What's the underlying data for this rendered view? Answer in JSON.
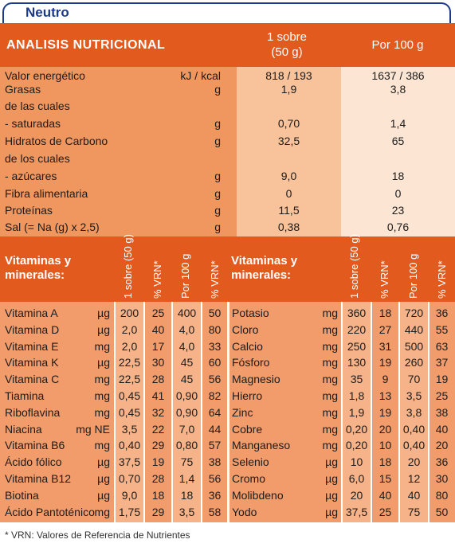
{
  "title": "Neutro",
  "header": {
    "analysis": "ANALISIS NUTRICIONAL",
    "per_sachet_line1": "1 sobre",
    "per_sachet_line2": "(50 g)",
    "per_100": "Por 100 g"
  },
  "nutrition_rows": [
    {
      "name": "Valor energético",
      "unit": "kJ / kcal",
      "sachet": "818 / 193",
      "per100": "1637 / 386"
    },
    {
      "name": "Grasas",
      "unit": "g",
      "sachet": "1,9",
      "per100": "3,8"
    },
    {
      "name": "de las cuales",
      "unit": "",
      "sachet": "",
      "per100": ""
    },
    {
      "name": " - saturadas",
      "unit": "g",
      "sachet": "0,70",
      "per100": "1,4"
    },
    {
      "name": "Hidratos de Carbono",
      "unit": "g",
      "sachet": "32,5",
      "per100": "65"
    },
    {
      "name": "de los cuales",
      "unit": "",
      "sachet": "",
      "per100": ""
    },
    {
      "name": " - azúcares",
      "unit": "g",
      "sachet": "9,0",
      "per100": "18"
    },
    {
      "name": "Fibra alimentaria",
      "unit": "g",
      "sachet": "0",
      "per100": "0"
    },
    {
      "name": "Proteínas",
      "unit": "g",
      "sachet": "11,5",
      "per100": "23"
    },
    {
      "name": "Sal (= Na (g) x 2,5)",
      "unit": "g",
      "sachet": "0,38",
      "per100": "0,76"
    }
  ],
  "vm_header": {
    "title_line1": "Vitaminas y",
    "title_line2": "minerales:",
    "col_sachet": "1 sobre (50 g)",
    "col_vrn": "% VRN*",
    "col_per100": "Por 100 g",
    "col_vrn2": "% VRN*"
  },
  "vitamins": [
    {
      "name": "Vitamina A",
      "unit": "µg",
      "sachet": "200",
      "vrn": "25",
      "per100": "400",
      "vrn100": "50"
    },
    {
      "name": "Vitamina D",
      "unit": "µg",
      "sachet": "2,0",
      "vrn": "40",
      "per100": "4,0",
      "vrn100": "80"
    },
    {
      "name": "Vitamina E",
      "unit": "mg",
      "sachet": "2,0",
      "vrn": "17",
      "per100": "4,0",
      "vrn100": "33"
    },
    {
      "name": "Vitamina K",
      "unit": "µg",
      "sachet": "22,5",
      "vrn": "30",
      "per100": "45",
      "vrn100": "60"
    },
    {
      "name": "Vitamina C",
      "unit": "mg",
      "sachet": "22,5",
      "vrn": "28",
      "per100": "45",
      "vrn100": "56"
    },
    {
      "name": "Tiamina",
      "unit": "mg",
      "sachet": "0,45",
      "vrn": "41",
      "per100": "0,90",
      "vrn100": "82"
    },
    {
      "name": "Riboflavina",
      "unit": "mg",
      "sachet": "0,45",
      "vrn": "32",
      "per100": "0,90",
      "vrn100": "64"
    },
    {
      "name": "Niacina",
      "unit": "mg NE",
      "sachet": "3,5",
      "vrn": "22",
      "per100": "7,0",
      "vrn100": "44"
    },
    {
      "name": "Vitamina B6",
      "unit": "mg",
      "sachet": "0,40",
      "vrn": "29",
      "per100": "0,80",
      "vrn100": "57"
    },
    {
      "name": "Ácido fólico",
      "unit": "µg",
      "sachet": "37,5",
      "vrn": "19",
      "per100": "75",
      "vrn100": "38"
    },
    {
      "name": "Vitamina B12",
      "unit": "µg",
      "sachet": "0,70",
      "vrn": "28",
      "per100": "1,4",
      "vrn100": "56"
    },
    {
      "name": "Biotina",
      "unit": "µg",
      "sachet": "9,0",
      "vrn": "18",
      "per100": "18",
      "vrn100": "36"
    },
    {
      "name": "Ácido Pantoténico",
      "unit": "mg",
      "sachet": "1,75",
      "vrn": "29",
      "per100": "3,5",
      "vrn100": "58"
    }
  ],
  "minerals": [
    {
      "name": "Potasio",
      "unit": "mg",
      "sachet": "360",
      "vrn": "18",
      "per100": "720",
      "vrn100": "36"
    },
    {
      "name": "Cloro",
      "unit": "mg",
      "sachet": "220",
      "vrn": "27",
      "per100": "440",
      "vrn100": "55"
    },
    {
      "name": "Calcio",
      "unit": "mg",
      "sachet": "250",
      "vrn": "31",
      "per100": "500",
      "vrn100": "63"
    },
    {
      "name": "Fósforo",
      "unit": "mg",
      "sachet": "130",
      "vrn": "19",
      "per100": "260",
      "vrn100": "37"
    },
    {
      "name": "Magnesio",
      "unit": "mg",
      "sachet": "35",
      "vrn": "9",
      "per100": "70",
      "vrn100": "19"
    },
    {
      "name": "Hierro",
      "unit": "mg",
      "sachet": "1,8",
      "vrn": "13",
      "per100": "3,5",
      "vrn100": "25"
    },
    {
      "name": "Zinc",
      "unit": "mg",
      "sachet": "1,9",
      "vrn": "19",
      "per100": "3,8",
      "vrn100": "38"
    },
    {
      "name": "Cobre",
      "unit": "mg",
      "sachet": "0,20",
      "vrn": "20",
      "per100": "0,40",
      "vrn100": "40"
    },
    {
      "name": "Manganeso",
      "unit": "mg",
      "sachet": "0,20",
      "vrn": "10",
      "per100": "0,40",
      "vrn100": "20"
    },
    {
      "name": "Selenio",
      "unit": "µg",
      "sachet": "10",
      "vrn": "18",
      "per100": "20",
      "vrn100": "36"
    },
    {
      "name": "Cromo",
      "unit": "µg",
      "sachet": "6,0",
      "vrn": "15",
      "per100": "12",
      "vrn100": "30"
    },
    {
      "name": "Molibdeno",
      "unit": "µg",
      "sachet": "20",
      "vrn": "40",
      "per100": "40",
      "vrn100": "80"
    },
    {
      "name": "Yodo",
      "unit": "µg",
      "sachet": "37,5",
      "vrn": "25",
      "per100": "75",
      "vrn100": "50"
    }
  ],
  "footnote": "*  VRN: Valores de Referencia de Nutrientes",
  "colors": {
    "header": "#e35a1f",
    "section1_name": "#f0965f",
    "section1_sachet": "#f8c29a",
    "section1_per100": "#fce6d3",
    "section2": "#f29c6b",
    "title": "#1b3a8c"
  }
}
